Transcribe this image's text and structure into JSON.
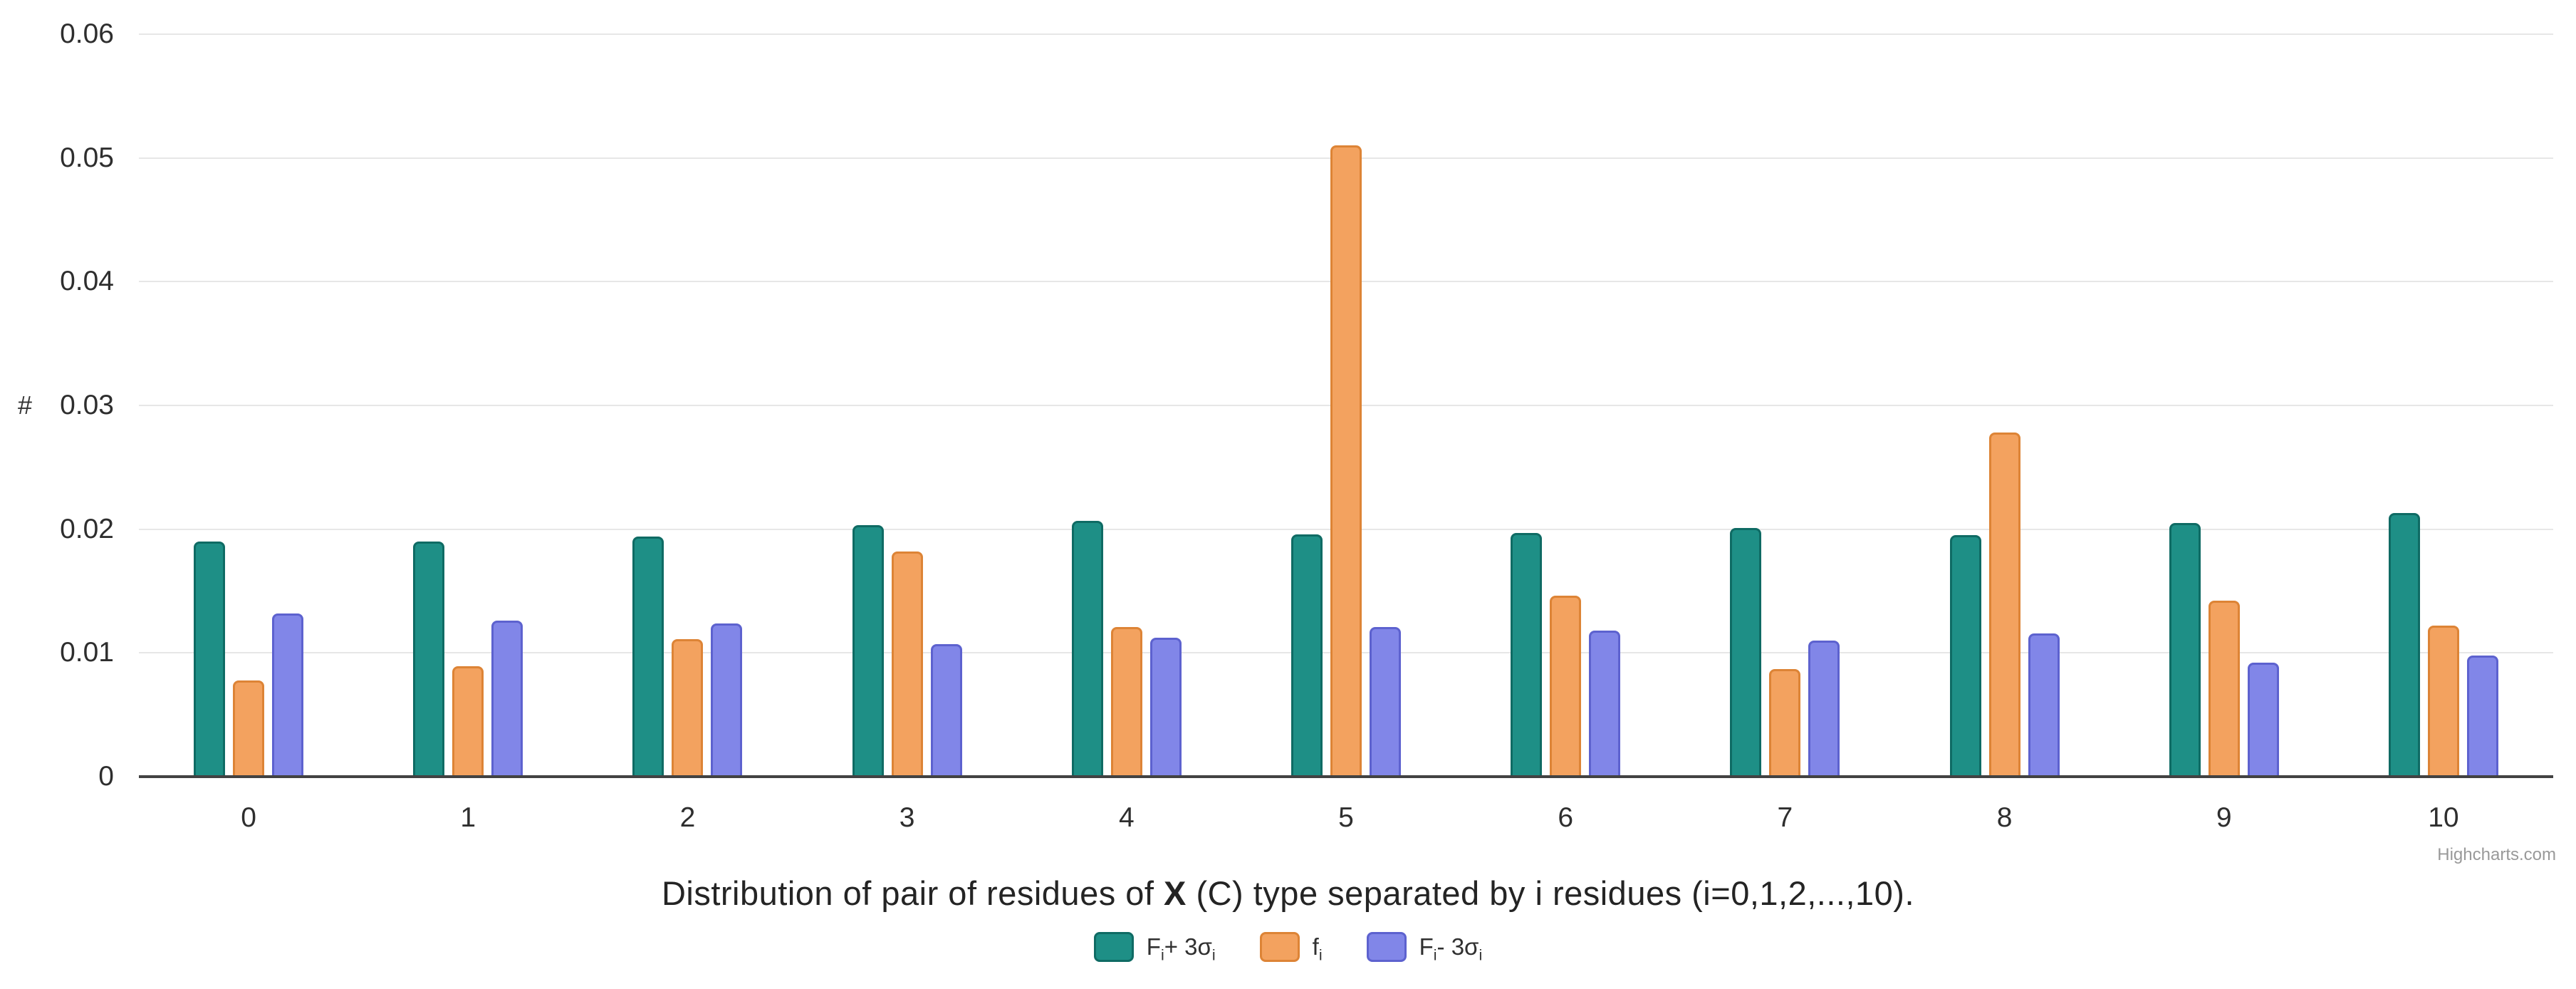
{
  "credit": "Highcharts.com",
  "chart_data": {
    "type": "bar",
    "title": "Distribution of pair of residues of X (C) type separated by i residues (i=0,1,2,...,10).",
    "title_parts": {
      "pre": "Distribution of pair of residues of ",
      "bold": "X",
      "post": " (C) type separated by i residues (i=0,1,2,...,10)."
    },
    "xlabel": "",
    "ylabel": "#",
    "ylim": [
      0,
      0.06
    ],
    "grid": true,
    "legend_position": "bottom",
    "categories": [
      "0",
      "1",
      "2",
      "3",
      "4",
      "5",
      "6",
      "7",
      "8",
      "9",
      "10"
    ],
    "yticks": [
      {
        "value": 0,
        "label": "0"
      },
      {
        "value": 0.01,
        "label": "0.01"
      },
      {
        "value": 0.02,
        "label": "0.02"
      },
      {
        "value": 0.03,
        "label": "0.03"
      },
      {
        "value": 0.04,
        "label": "0.04"
      },
      {
        "value": 0.05,
        "label": "0.05"
      },
      {
        "value": 0.06,
        "label": "0.06"
      }
    ],
    "series": [
      {
        "name": "Fi+ 3σi",
        "label_parts": {
          "main": "F",
          "sub": "i",
          "mid": "+ 3σ",
          "sub2": "i"
        },
        "color": "#1e8f86",
        "border_color": "#0f6b64",
        "values": [
          0.019,
          0.019,
          0.0194,
          0.0203,
          0.0207,
          0.0196,
          0.0197,
          0.0201,
          0.0195,
          0.0205,
          0.0213
        ]
      },
      {
        "name": "fi",
        "label_parts": {
          "main": "f",
          "sub": "i",
          "mid": "",
          "sub2": ""
        },
        "color": "#f3a25f",
        "border_color": "#dd8436",
        "values": [
          0.0078,
          0.0089,
          0.0111,
          0.0182,
          0.0121,
          0.051,
          0.0146,
          0.0087,
          0.0278,
          0.0142,
          0.0122
        ]
      },
      {
        "name": "Fi- 3σi",
        "label_parts": {
          "main": "F",
          "sub": "i",
          "mid": "- 3σ",
          "sub2": "i"
        },
        "color": "#8186e8",
        "border_color": "#5d62cf",
        "values": [
          0.0132,
          0.0126,
          0.0124,
          0.0107,
          0.0112,
          0.0121,
          0.0118,
          0.011,
          0.0116,
          0.0092,
          0.0098
        ]
      }
    ]
  }
}
